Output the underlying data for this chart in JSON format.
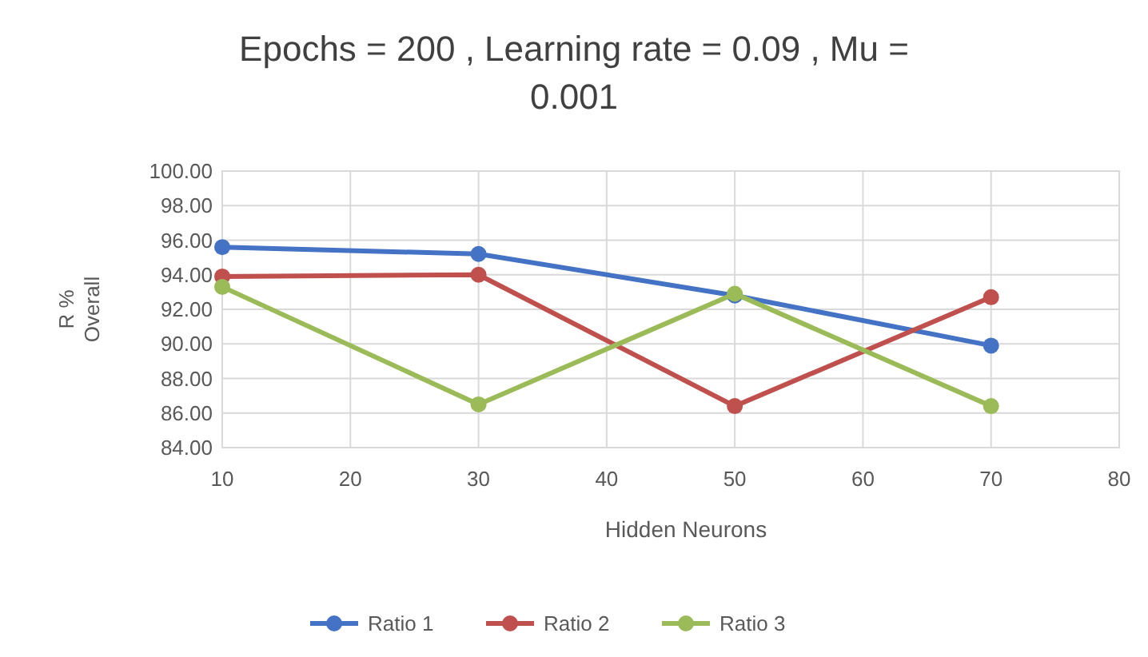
{
  "chart_data": {
    "type": "line",
    "title": "Epochs = 200  , Learning rate = 0.09   , Mu = 0.001",
    "xlabel": "Hidden Neurons",
    "ylabel": "R % Overall",
    "x": [
      10,
      30,
      50,
      70
    ],
    "series": [
      {
        "name": "Ratio 1",
        "color": "#4472c4",
        "values": [
          95.6,
          95.2,
          92.8,
          89.9
        ]
      },
      {
        "name": "Ratio 2",
        "color": "#c0504d",
        "values": [
          93.9,
          94.0,
          86.4,
          92.7
        ]
      },
      {
        "name": "Ratio 3",
        "color": "#9bbb59",
        "values": [
          93.3,
          86.5,
          92.9,
          86.4
        ]
      }
    ],
    "xlim": [
      10,
      80
    ],
    "xticks": [
      10,
      20,
      30,
      40,
      50,
      60,
      70,
      80
    ],
    "ylim": [
      84,
      100
    ],
    "yticks": [
      {
        "value": 84,
        "label": "84.00"
      },
      {
        "value": 86,
        "label": "86.00"
      },
      {
        "value": 88,
        "label": "88.00"
      },
      {
        "value": 90,
        "label": "90.00"
      },
      {
        "value": 92,
        "label": "92.00"
      },
      {
        "value": 94,
        "label": "94.00"
      },
      {
        "value": 96,
        "label": "96.00"
      },
      {
        "value": 98,
        "label": "98.00"
      },
      {
        "value": 100,
        "label": "100.00"
      }
    ],
    "grid": true,
    "legend": "bottom",
    "marker": "circle",
    "line_style": "solid"
  }
}
